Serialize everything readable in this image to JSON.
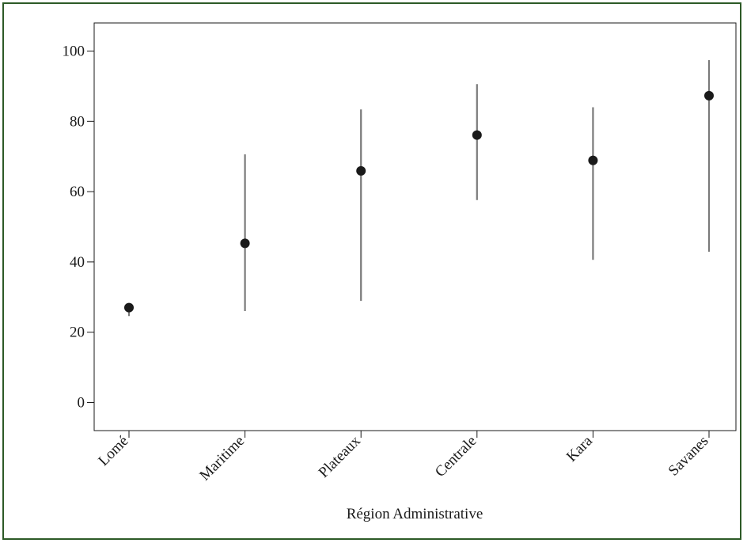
{
  "chart_data": {
    "type": "scatter",
    "title": "",
    "xlabel": "Région Administrative",
    "ylabel": "",
    "categories": [
      "Lomé",
      "Maritime",
      "Plateaux",
      "Centrale",
      "Kara",
      "Savanes"
    ],
    "series": [
      {
        "values": [
          27.0,
          45.3,
          65.9,
          76.1,
          68.9,
          87.3
        ],
        "lower": [
          24.6,
          26.0,
          28.9,
          57.6,
          40.6,
          42.9
        ],
        "upper": [
          27.6,
          70.6,
          83.4,
          90.6,
          84.0,
          97.4
        ]
      }
    ],
    "ylim": [
      -8,
      108
    ],
    "yticks": [
      0,
      20,
      40,
      60,
      80,
      100
    ],
    "grid": false,
    "colors": {
      "point": "#1a1a1a",
      "interval": "#7a7a7a",
      "frame": "#2d5a27"
    }
  }
}
